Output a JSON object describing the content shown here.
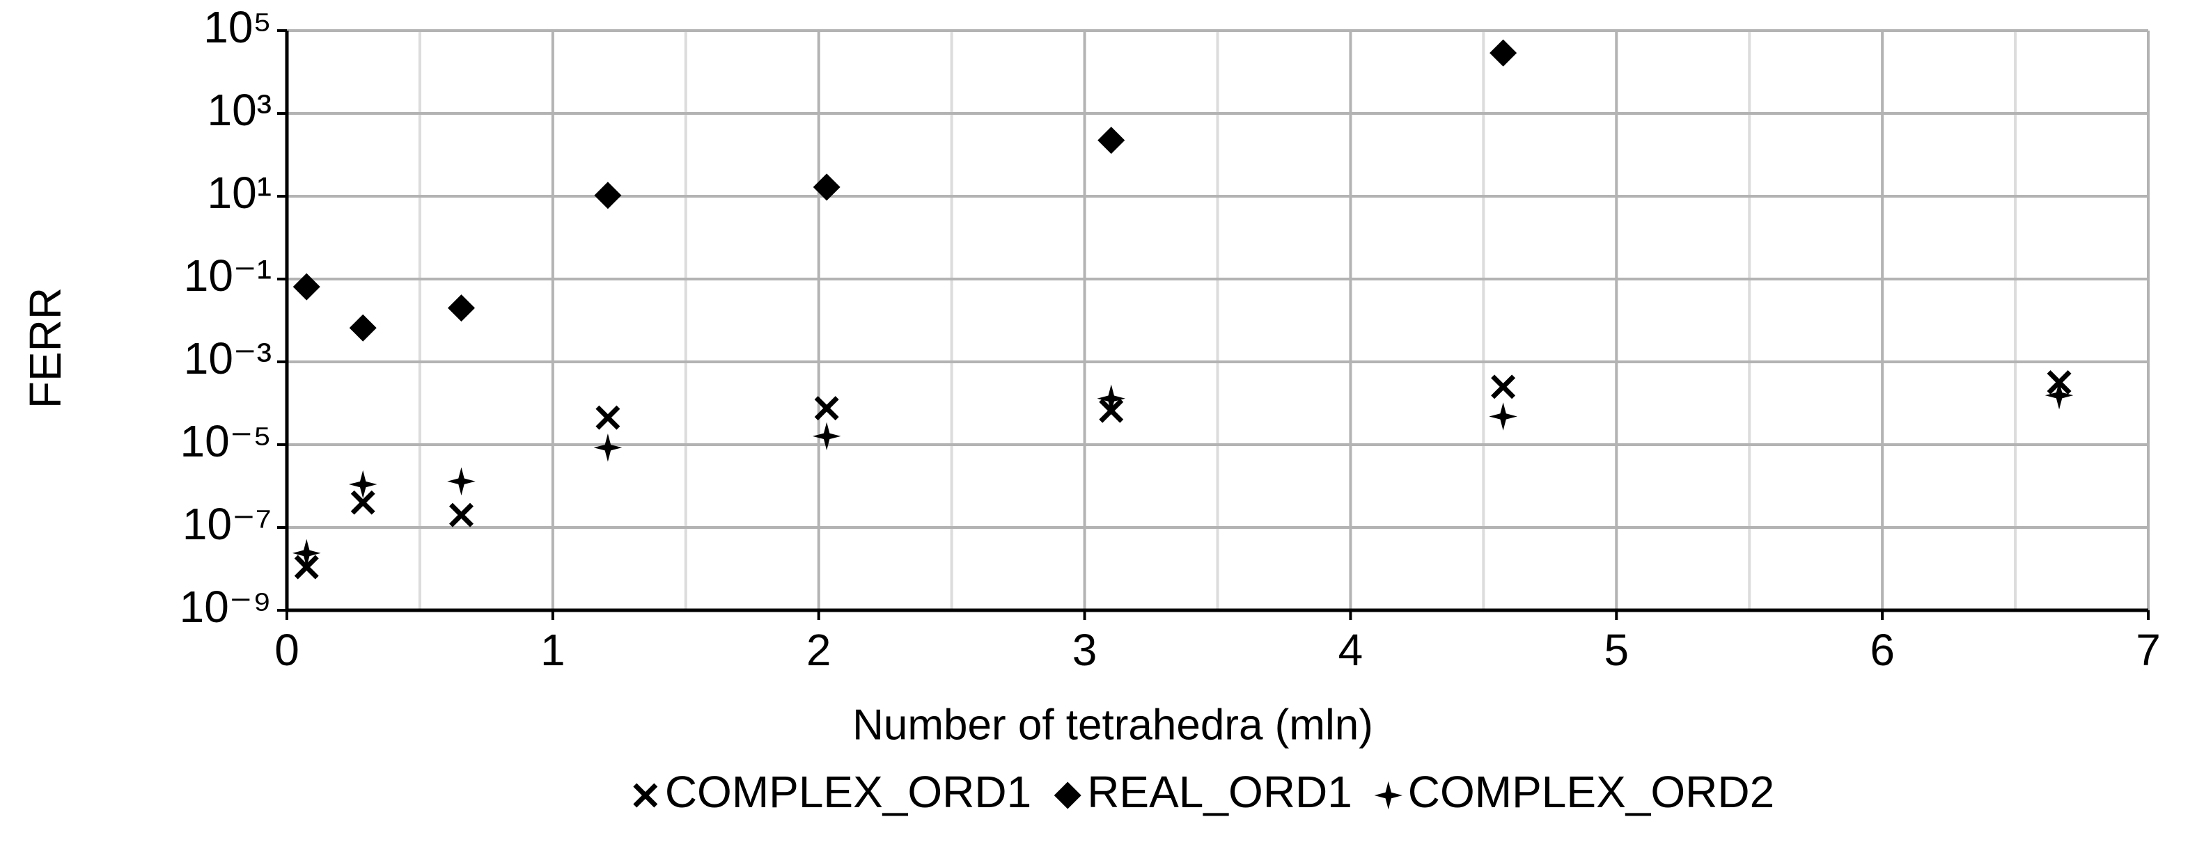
{
  "chart_data": {
    "type": "scatter",
    "x_label": "Number of tetrahedra (mln)",
    "y_label": "FERR",
    "xlim": [
      0,
      7
    ],
    "xticks": [
      0,
      1,
      2,
      3,
      4,
      5,
      6,
      7
    ],
    "ylim": [
      1e-09,
      100000
    ],
    "yscale": "log",
    "yticks": [
      {
        "value": 1e-09,
        "label": "10⁻⁹"
      },
      {
        "value": 1e-07,
        "label": "10⁻⁷"
      },
      {
        "value": 1e-05,
        "label": "10⁻⁵"
      },
      {
        "value": 0.001,
        "label": "10⁻³"
      },
      {
        "value": 0.1,
        "label": "10⁻¹"
      },
      {
        "value": 10,
        "label": "10¹"
      },
      {
        "value": 1000,
        "label": "10³"
      },
      {
        "value": 100000,
        "label": "10⁵"
      }
    ],
    "grid": true,
    "legend": "bottom",
    "series": [
      {
        "name": "COMPLEX_ORD1",
        "marker": "x",
        "color": "#000000",
        "x": [
          0.074,
          0.286,
          0.656,
          1.207,
          2.03,
          3.1,
          4.574,
          6.665
        ],
        "values": [
          1.1e-08,
          4e-07,
          2e-07,
          4.5e-05,
          7.6e-05,
          6.6e-05,
          0.00025,
          0.00032
        ]
      },
      {
        "name": "REAL_ORD1",
        "marker": "diamond",
        "color": "#000000",
        "x": [
          0.074,
          0.286,
          0.656,
          1.207,
          2.03,
          3.1,
          4.574
        ],
        "values": [
          0.065,
          0.0066,
          0.02,
          10.5,
          16.6,
          224,
          28800
        ]
      },
      {
        "name": "COMPLEX_ORD2",
        "marker": "star",
        "color": "#000000",
        "x": [
          0.074,
          0.286,
          0.656,
          1.207,
          2.03,
          3.1,
          4.574,
          6.665
        ],
        "values": [
          2.4e-08,
          1.1e-06,
          1.3e-06,
          8.5e-06,
          1.6e-05,
          0.00013,
          4.8e-05,
          0.000155
        ]
      }
    ]
  }
}
